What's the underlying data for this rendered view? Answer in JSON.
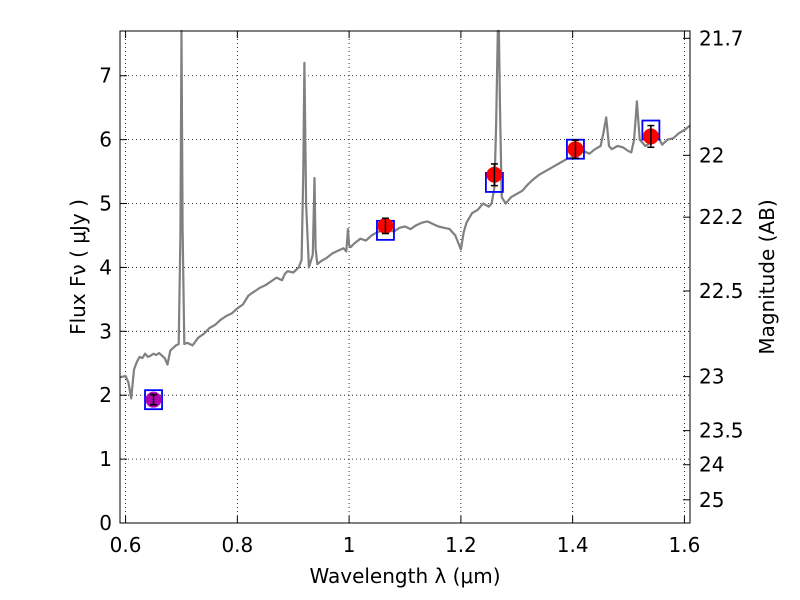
{
  "chart_data": {
    "type": "line",
    "xlabel": "Wavelength  λ (μm)",
    "ylabel": "Flux  Fν  ( μJy )",
    "ylabel_right": "Magnitude (AB)",
    "xlim": [
      0.59,
      1.61
    ],
    "ylim": [
      0,
      7.7
    ],
    "x_ticks": [
      0.6,
      0.8,
      1.0,
      1.2,
      1.4,
      1.6
    ],
    "x_tick_labels": [
      "0.6",
      "0.8",
      "1",
      "1.2",
      "1.4",
      "1.6"
    ],
    "y_ticks": [
      0,
      1,
      2,
      3,
      4,
      5,
      6,
      7
    ],
    "y_tick_labels": [
      "0",
      "1",
      "2",
      "3",
      "4",
      "5",
      "6",
      "7"
    ],
    "mag_ticks": [
      21.7,
      22,
      22.2,
      22.5,
      23,
      23.5,
      24,
      25
    ],
    "mag_tick_labels": [
      "21.7",
      "22",
      "22.2",
      "22.5",
      "23",
      "23.5",
      "24",
      "25"
    ],
    "grid": true,
    "colors": {
      "spectrum": "#808080",
      "observed": "#ff0000",
      "observed_magenta": "#b000b0",
      "model_box": "#0000ff",
      "errorbar": "#000000"
    },
    "series": [
      {
        "kind": "spectrum",
        "x": [
          0.59,
          0.6,
          0.605,
          0.61,
          0.615,
          0.62,
          0.625,
          0.63,
          0.635,
          0.64,
          0.645,
          0.65,
          0.655,
          0.66,
          0.665,
          0.67,
          0.675,
          0.68,
          0.685,
          0.69,
          0.695,
          0.698,
          0.7,
          0.702,
          0.705,
          0.71,
          0.72,
          0.73,
          0.74,
          0.75,
          0.76,
          0.77,
          0.78,
          0.79,
          0.8,
          0.81,
          0.82,
          0.83,
          0.84,
          0.85,
          0.86,
          0.87,
          0.88,
          0.885,
          0.89,
          0.9,
          0.91,
          0.915,
          0.918,
          0.92,
          0.923,
          0.928,
          0.935,
          0.938,
          0.94,
          0.943,
          0.95,
          0.96,
          0.97,
          0.98,
          0.99,
          0.995,
          0.998,
          1.0,
          1.003,
          1.01,
          1.02,
          1.03,
          1.04,
          1.05,
          1.06,
          1.07,
          1.08,
          1.09,
          1.1,
          1.11,
          1.12,
          1.13,
          1.14,
          1.15,
          1.16,
          1.17,
          1.18,
          1.19,
          1.2,
          1.205,
          1.21,
          1.22,
          1.23,
          1.24,
          1.25,
          1.255,
          1.26,
          1.263,
          1.266,
          1.268,
          1.27,
          1.273,
          1.28,
          1.29,
          1.3,
          1.31,
          1.32,
          1.33,
          1.34,
          1.35,
          1.36,
          1.37,
          1.38,
          1.39,
          1.4,
          1.41,
          1.42,
          1.43,
          1.44,
          1.45,
          1.455,
          1.46,
          1.465,
          1.47,
          1.48,
          1.49,
          1.5,
          1.505,
          1.51,
          1.515,
          1.52,
          1.53,
          1.54,
          1.55,
          1.56,
          1.57,
          1.58,
          1.59,
          1.6,
          1.61
        ],
        "y": [
          2.28,
          2.3,
          2.2,
          1.95,
          2.4,
          2.52,
          2.6,
          2.58,
          2.65,
          2.6,
          2.62,
          2.65,
          2.63,
          2.66,
          2.62,
          2.58,
          2.48,
          2.7,
          2.74,
          2.78,
          2.8,
          4.5,
          7.7,
          4.6,
          2.8,
          2.82,
          2.78,
          2.9,
          2.96,
          3.05,
          3.1,
          3.18,
          3.24,
          3.28,
          3.36,
          3.42,
          3.56,
          3.62,
          3.68,
          3.72,
          3.78,
          3.84,
          3.8,
          3.9,
          3.94,
          3.92,
          4.0,
          4.12,
          5.5,
          7.2,
          5.0,
          4.0,
          4.2,
          5.4,
          4.3,
          4.05,
          4.1,
          4.15,
          4.22,
          4.26,
          4.3,
          4.25,
          4.6,
          4.35,
          4.32,
          4.38,
          4.45,
          4.42,
          4.5,
          4.55,
          4.58,
          4.6,
          4.56,
          4.62,
          4.64,
          4.6,
          4.66,
          4.7,
          4.72,
          4.68,
          4.64,
          4.62,
          4.6,
          4.5,
          4.28,
          4.55,
          4.7,
          4.85,
          4.9,
          5.0,
          4.95,
          5.0,
          5.25,
          6.2,
          7.7,
          7.7,
          6.5,
          5.1,
          5.0,
          5.1,
          5.15,
          5.2,
          5.3,
          5.38,
          5.45,
          5.5,
          5.55,
          5.6,
          5.65,
          5.7,
          5.73,
          5.78,
          5.82,
          5.78,
          5.85,
          5.9,
          6.1,
          6.35,
          5.9,
          5.85,
          5.9,
          5.88,
          5.82,
          5.8,
          6.0,
          6.6,
          6.0,
          5.9,
          5.95,
          6.1,
          5.92,
          6.0,
          6.02,
          6.1,
          6.15,
          6.22
        ]
      },
      {
        "kind": "photometry",
        "x": [
          0.65,
          1.065,
          1.26,
          1.405,
          1.54
        ],
        "y": [
          1.93,
          4.65,
          5.45,
          5.85,
          6.05
        ],
        "yerr": [
          0.08,
          0.12,
          0.17,
          0.14,
          0.17
        ],
        "colors": [
          "#b000b0",
          "#ff0000",
          "#ff0000",
          "#ff0000",
          "#ff0000"
        ]
      },
      {
        "kind": "model",
        "x": [
          0.65,
          1.065,
          1.26,
          1.405,
          1.54
        ],
        "y": [
          1.93,
          4.58,
          5.33,
          5.85,
          6.15
        ]
      }
    ]
  }
}
